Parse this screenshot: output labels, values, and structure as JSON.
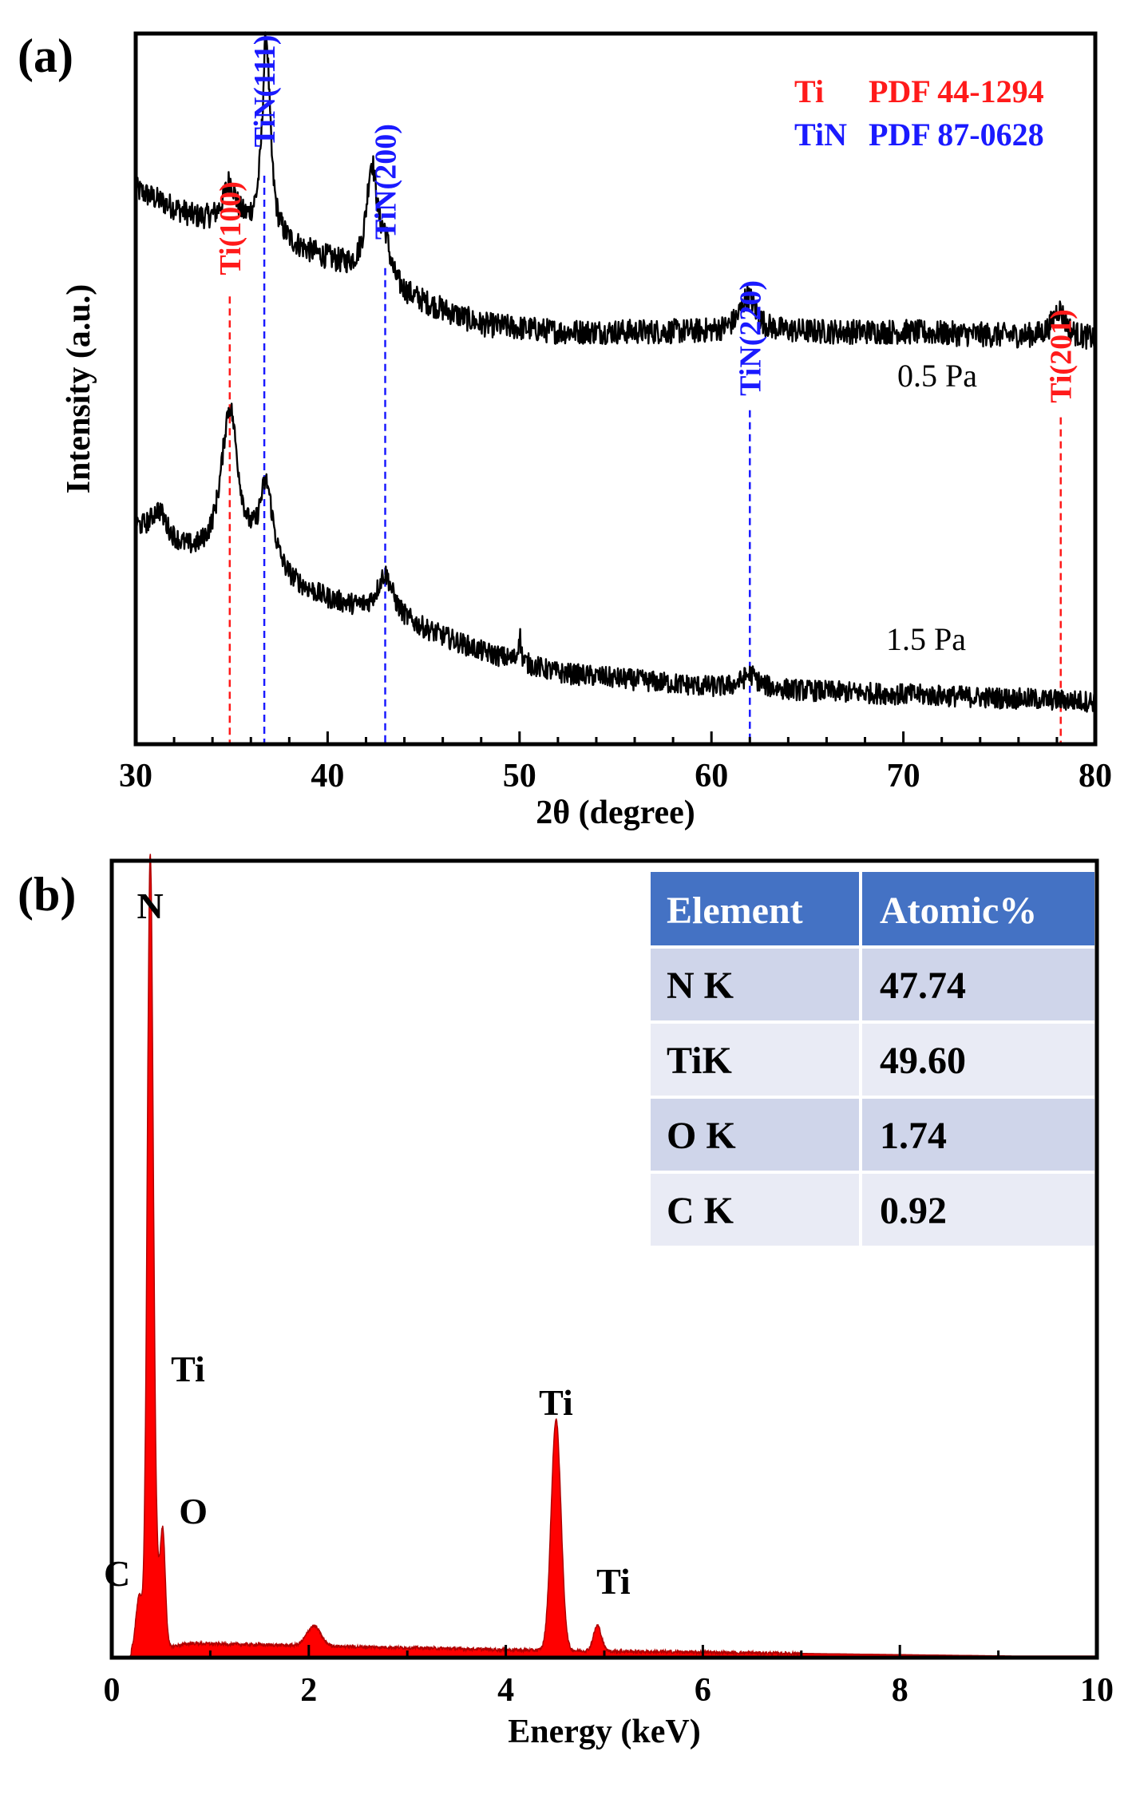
{
  "chart_data": [
    {
      "type": "line",
      "panel": "(a)",
      "xlabel": "2θ (degree)",
      "ylabel": "Intensity (a.u.)",
      "xlim": [
        30,
        80
      ],
      "xticks": [
        30,
        40,
        50,
        60,
        70,
        80
      ],
      "legend": [
        {
          "phase": "Ti",
          "ref": "PDF 44-1294",
          "color": "#ff1a1a"
        },
        {
          "phase": "TiN",
          "ref": "PDF 87-0628",
          "color": "#1a1aff"
        }
      ],
      "reference_lines": [
        {
          "label": "Ti(100)",
          "x": 34.9,
          "color": "#ff1a1a"
        },
        {
          "label": "TiN(111)",
          "x": 36.7,
          "color": "#1a1aff"
        },
        {
          "label": "TiN(200)",
          "x": 43.0,
          "color": "#1a1aff"
        },
        {
          "label": "TiN(220)",
          "x": 62.0,
          "color": "#1a1aff"
        },
        {
          "label": "Ti(201)",
          "x": 78.2,
          "color": "#ff1a1a"
        }
      ],
      "series": [
        {
          "name": "0.5 Pa",
          "baseline": [
            [
              30,
              0.78
            ],
            [
              33,
              0.74
            ],
            [
              36,
              0.72
            ],
            [
              40,
              0.68
            ],
            [
              44,
              0.63
            ],
            [
              48,
              0.59
            ],
            [
              52,
              0.58
            ],
            [
              60,
              0.58
            ],
            [
              70,
              0.58
            ],
            [
              80,
              0.57
            ]
          ],
          "peaks": [
            {
              "x": 34.9,
              "height": 0.06,
              "width": 0.4
            },
            {
              "x": 36.8,
              "height": 0.28,
              "width": 0.25
            },
            {
              "x": 42.3,
              "height": 0.16,
              "width": 0.35
            },
            {
              "x": 43.0,
              "height": 0.05,
              "width": 0.3
            },
            {
              "x": 61.9,
              "height": 0.05,
              "width": 0.5
            },
            {
              "x": 78.1,
              "height": 0.04,
              "width": 0.4
            }
          ],
          "noise": 0.035
        },
        {
          "name": "1.5 Pa",
          "baseline": [
            [
              30,
              0.3
            ],
            [
              33,
              0.26
            ],
            [
              36,
              0.24
            ],
            [
              40,
              0.2
            ],
            [
              44,
              0.17
            ],
            [
              48,
              0.13
            ],
            [
              52,
              0.1
            ],
            [
              60,
              0.08
            ],
            [
              70,
              0.07
            ],
            [
              80,
              0.06
            ]
          ],
          "peaks": [
            {
              "x": 31.2,
              "height": 0.04,
              "width": 0.5
            },
            {
              "x": 34.9,
              "height": 0.22,
              "width": 0.55
            },
            {
              "x": 36.8,
              "height": 0.12,
              "width": 0.45
            },
            {
              "x": 43.0,
              "height": 0.06,
              "width": 0.5
            },
            {
              "x": 50.0,
              "height": 0.04,
              "width": 0.08
            },
            {
              "x": 62.0,
              "height": 0.02,
              "width": 0.5
            }
          ],
          "noise": 0.03
        }
      ]
    },
    {
      "type": "area",
      "panel": "(b)",
      "xlabel": "Energy (keV)",
      "ylabel": "",
      "xlim": [
        0,
        10
      ],
      "ylim": [
        0,
        1.0
      ],
      "xticks": [
        0,
        2,
        4,
        6,
        8,
        10
      ],
      "fill_color": "#ff0000",
      "peaks": [
        {
          "x": 0.28,
          "height": 0.07,
          "width": 0.035
        },
        {
          "x": 0.39,
          "height": 0.97,
          "width": 0.03
        },
        {
          "x": 0.45,
          "height": 0.09,
          "width": 0.04
        },
        {
          "x": 0.52,
          "height": 0.13,
          "width": 0.025
        },
        {
          "x": 2.05,
          "height": 0.025,
          "width": 0.07
        },
        {
          "x": 4.51,
          "height": 0.29,
          "width": 0.05
        },
        {
          "x": 4.93,
          "height": 0.032,
          "width": 0.04
        }
      ],
      "peak_labels": [
        {
          "label": "N",
          "energy": 0.39
        },
        {
          "label": "Ti",
          "energy": 0.45
        },
        {
          "label": "O",
          "energy": 0.52
        },
        {
          "label": "C",
          "energy": 0.28
        },
        {
          "label": "Ti",
          "energy": 4.51
        },
        {
          "label": "Ti",
          "energy": 4.93
        }
      ],
      "table": {
        "headers": [
          "Element",
          "Atomic%"
        ],
        "rows": [
          [
            "N K",
            "47.74"
          ],
          [
            "TiK",
            "49.60"
          ],
          [
            "O K",
            "1.74"
          ],
          [
            "C K",
            "0.92"
          ]
        ]
      }
    }
  ]
}
